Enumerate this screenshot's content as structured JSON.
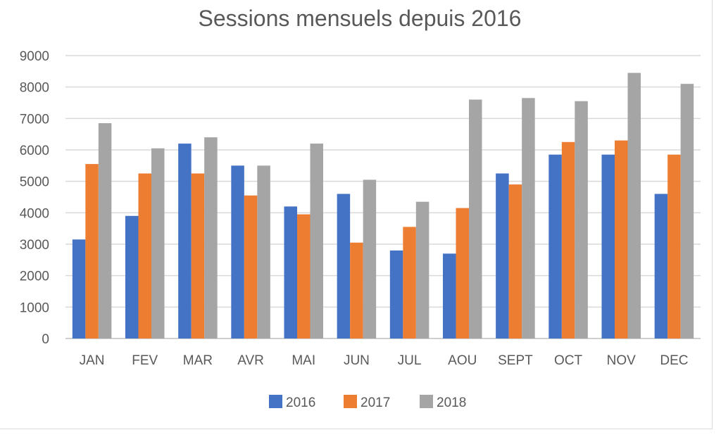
{
  "chart_data": {
    "type": "bar",
    "title": "Sessions mensuels depuis 2016",
    "xlabel": "",
    "ylabel": "",
    "ylim": [
      0,
      9000
    ],
    "yticks": [
      0,
      1000,
      2000,
      3000,
      4000,
      5000,
      6000,
      7000,
      8000,
      9000
    ],
    "grid": true,
    "legend_position": "bottom",
    "categories": [
      "JAN",
      "FEV",
      "MAR",
      "AVR",
      "MAI",
      "JUN",
      "JUL",
      "AOU",
      "SEPT",
      "OCT",
      "NOV",
      "DEC"
    ],
    "series": [
      {
        "name": "2016",
        "color": "#4472c4",
        "values": [
          3150,
          3900,
          6200,
          5500,
          4200,
          4600,
          2800,
          2700,
          5250,
          5850,
          5850,
          4600
        ]
      },
      {
        "name": "2017",
        "color": "#ed7d31",
        "values": [
          5550,
          5250,
          5250,
          4550,
          3950,
          3050,
          3550,
          4150,
          4900,
          6250,
          6300,
          5850
        ]
      },
      {
        "name": "2018",
        "color": "#a5a5a5",
        "values": [
          6850,
          6050,
          6400,
          5500,
          6200,
          5050,
          4350,
          7600,
          7650,
          7550,
          8450,
          8100
        ]
      }
    ]
  }
}
